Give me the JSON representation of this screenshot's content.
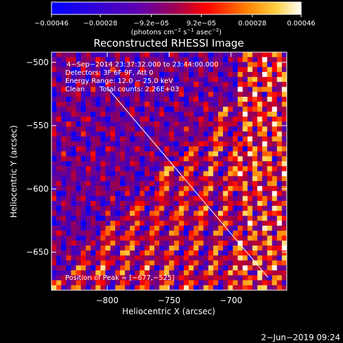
{
  "chart_data": {
    "type": "heatmap",
    "title": "Reconstructed RHESSI Image",
    "xlabel": "Heliocentric X (arcsec)",
    "ylabel": "Heliocentric Y (arcsec)",
    "xlim": [
      -845,
      -655
    ],
    "ylim": [
      -680,
      -492
    ],
    "x_ticks": [
      -800,
      -750,
      -700
    ],
    "x_tick_labels": [
      "−800",
      "−750",
      "−700"
    ],
    "y_ticks": [
      -500,
      -550,
      -600,
      -650
    ],
    "y_tick_labels": [
      "−500",
      "−550",
      "−600",
      "−650"
    ],
    "colorbar": {
      "range": [
        -0.00046,
        0.00046
      ],
      "ticks": [
        -0.00046,
        -0.00028,
        -9.2e-05,
        9.2e-05,
        0.00028,
        0.00046
      ],
      "tick_labels": [
        "−0.00046",
        "−0.00028",
        "−9.2e−05",
        "9.2e−05",
        "0.00028",
        "0.00046"
      ],
      "unit_main": "(photons cm",
      "unit_exp1": "−2",
      "unit_mid1": " s",
      "unit_exp2": "−1",
      "unit_mid2": " asec",
      "unit_exp3": "−2",
      "unit_end": ")",
      "colors": [
        "#0000ff",
        "#5000c0",
        "#900060",
        "#ff0000",
        "#ff8000",
        "#ffd040",
        "#ffffff"
      ]
    },
    "annotations": {
      "time_range": "4−Sep−2014 23:37:32.000 to 23:44:00.000",
      "detectors": "Detectors: 3F 6F 9F, Att 0",
      "energy": "Energy Range: 12.0 − 25.0 keV",
      "method": "Clean",
      "total_counts": "Total counts: 2.26E+03",
      "peak": "Position of Peak = [−677,−525]"
    },
    "limb_line": {
      "x": [
        -800,
        -670
      ],
      "y": [
        -520,
        -670
      ]
    }
  },
  "footer": {
    "date": "2−Jun−2019 09:24"
  }
}
